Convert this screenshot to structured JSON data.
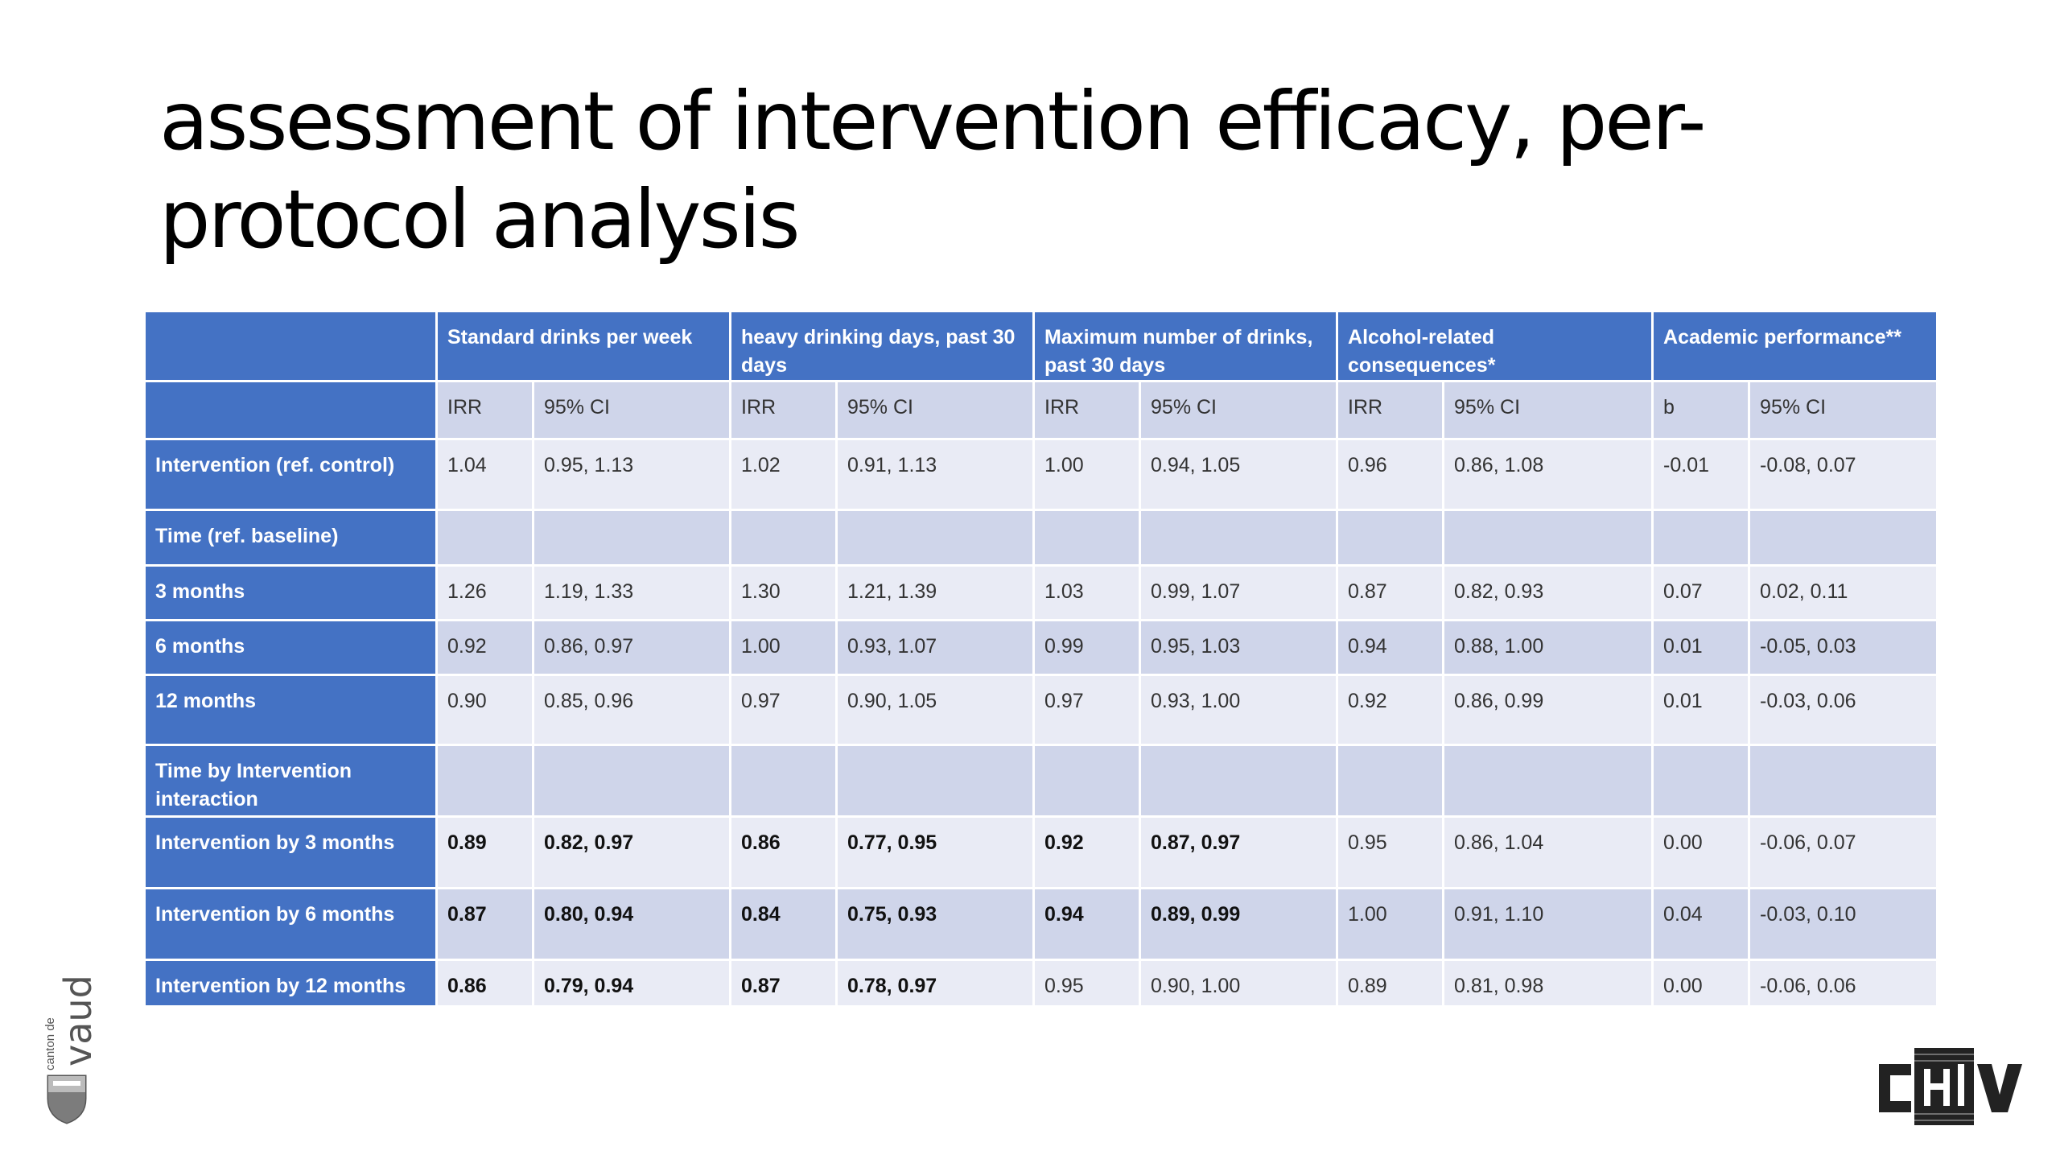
{
  "title": "assessment of intervention efficacy, per-protocol analysis",
  "table": {
    "headers": [
      "",
      "Standard drinks per week",
      "heavy drinking days, past 30 days",
      "Maximum number of drinks, past 30 days",
      "Alcohol-related consequences*",
      "Academic performance**"
    ],
    "subheaders": [
      "IRR",
      "95% CI",
      "IRR",
      "95% CI",
      "IRR",
      "95% CI",
      "IRR",
      "95% CI",
      "b",
      "95% CI"
    ],
    "rows": [
      {
        "label": "Intervention (ref. control)",
        "cells": [
          "1.04",
          "0.95, 1.13",
          "1.02",
          "0.91, 1.13",
          "1.00",
          "0.94, 1.05",
          "0.96",
          "0.86, 1.08",
          "-0.01",
          "-0.08, 0.07"
        ],
        "bold": []
      },
      {
        "label": "Time (ref. baseline)",
        "cells": [
          "",
          "",
          "",
          "",
          "",
          "",
          "",
          "",
          "",
          ""
        ],
        "bold": []
      },
      {
        "label": "3 months",
        "cells": [
          "1.26",
          "1.19, 1.33",
          "1.30",
          "1.21, 1.39",
          "1.03",
          "0.99, 1.07",
          "0.87",
          "0.82, 0.93",
          "0.07",
          "0.02, 0.11"
        ],
        "bold": []
      },
      {
        "label": "6 months",
        "cells": [
          "0.92",
          "0.86, 0.97",
          "1.00",
          "0.93, 1.07",
          "0.99",
          "0.95, 1.03",
          "0.94",
          "0.88, 1.00",
          "0.01",
          "-0.05, 0.03"
        ],
        "bold": []
      },
      {
        "label": "12 months",
        "cells": [
          "0.90",
          "0.85, 0.96",
          "0.97",
          "0.90, 1.05",
          "0.97",
          "0.93, 1.00",
          "0.92",
          "0.86, 0.99",
          "0.01",
          "-0.03, 0.06"
        ],
        "bold": []
      },
      {
        "label": "Time by Intervention interaction",
        "cells": [
          "",
          "",
          "",
          "",
          "",
          "",
          "",
          "",
          "",
          ""
        ],
        "bold": []
      },
      {
        "label": "Intervention by 3 months",
        "cells": [
          "0.89",
          "0.82, 0.97",
          "0.86",
          "0.77, 0.95",
          "0.92",
          "0.87, 0.97",
          "0.95",
          "0.86, 1.04",
          "0.00",
          "-0.06, 0.07"
        ],
        "bold": [
          0,
          1,
          2,
          3,
          4,
          5
        ]
      },
      {
        "label": "Intervention by 6 months",
        "cells": [
          "0.87",
          "0.80, 0.94",
          "0.84",
          "0.75, 0.93",
          "0.94",
          "0.89, 0.99",
          "1.00",
          "0.91, 1.10",
          "0.04",
          "-0.03, 0.10"
        ],
        "bold": [
          0,
          1,
          2,
          3,
          4,
          5
        ]
      },
      {
        "label": "Intervention by 12 months",
        "cells": [
          "0.86",
          "0.79, 0.94",
          "0.87",
          "0.78, 0.97",
          "0.95",
          "0.90, 1.00",
          "0.89",
          "0.81, 0.98",
          "0.00",
          "-0.06, 0.06"
        ],
        "bold": [
          0,
          1,
          2,
          3
        ]
      }
    ]
  },
  "logos": {
    "vaud_small": "canton de",
    "vaud_big": "vaud",
    "chuv": "CHUV"
  },
  "colors": {
    "header": "#4472c4",
    "row_dark": "#cfd5ea",
    "row_light": "#e9ebf5"
  }
}
